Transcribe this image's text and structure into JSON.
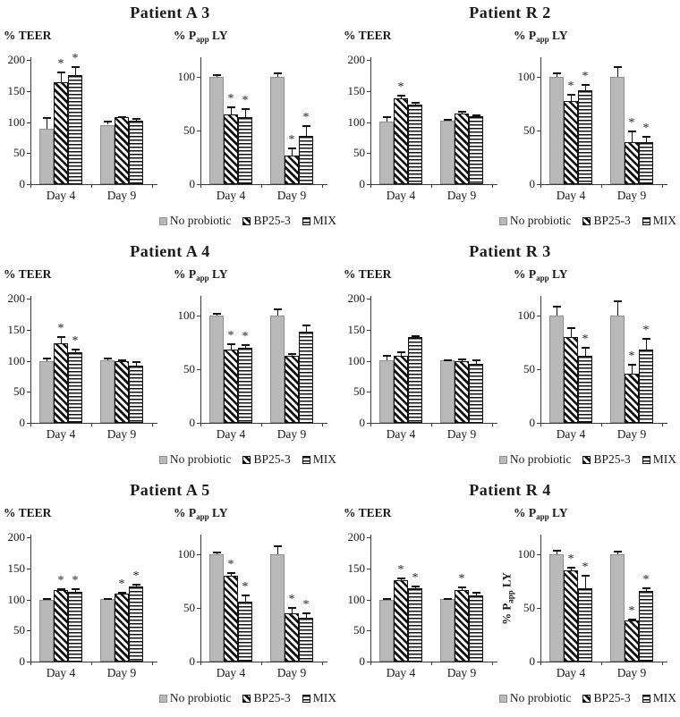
{
  "labels": {
    "teer": {
      "pre": "% TEER",
      "sub": "",
      "post": ""
    },
    "papp": {
      "pre": "% P",
      "sub": "app",
      "post": " LY"
    }
  },
  "legend": {
    "items": [
      {
        "label": "No probiotic",
        "pattern": "solid"
      },
      {
        "label": "BP25-3",
        "pattern": "diag"
      },
      {
        "label": "MIX",
        "pattern": "horiz"
      }
    ]
  },
  "colors": {
    "bar_gray": "#b9b9b9",
    "stripe_black": "#111111",
    "axis": "#3a3a3a",
    "text": "#1a1a1a"
  },
  "panels": [
    {
      "title": "Patient A 3"
    },
    {
      "title": "Patient R 2"
    },
    {
      "title": "Patient A 4"
    },
    {
      "title": "Patient R 3"
    },
    {
      "title": "Patient A 5"
    },
    {
      "title": "Patient R 4"
    }
  ],
  "chart_data": [
    {
      "panel": "Patient A 3",
      "measure": "% TEER",
      "type": "bar",
      "categories": [
        "Day 4",
        "Day 9"
      ],
      "yticks": [
        0,
        50,
        100,
        150,
        200
      ],
      "ylim": [
        0,
        205
      ],
      "ymax": 205,
      "series": [
        {
          "name": "No probiotic",
          "values": [
            89,
            96
          ],
          "errors": [
            19,
            6
          ],
          "sig": [
            false,
            false
          ]
        },
        {
          "name": "BP25-3",
          "values": [
            165,
            108
          ],
          "errors": [
            17,
            2
          ],
          "sig": [
            true,
            false
          ]
        },
        {
          "name": "MIX",
          "values": [
            176,
            103
          ],
          "errors": [
            14,
            4
          ],
          "sig": [
            true,
            false
          ]
        }
      ]
    },
    {
      "panel": "Patient A 3",
      "measure": "% Papp LY",
      "type": "bar",
      "categories": [
        "Day 4",
        "Day 9"
      ],
      "yticks": [
        0,
        50,
        100
      ],
      "ylim": [
        0,
        118
      ],
      "ymax": 118,
      "series": [
        {
          "name": "No probiotic",
          "values": [
            100,
            100
          ],
          "errors": [
            2,
            4
          ],
          "sig": [
            false,
            false
          ]
        },
        {
          "name": "BP25-3",
          "values": [
            65,
            27
          ],
          "errors": [
            7,
            7
          ],
          "sig": [
            true,
            true
          ]
        },
        {
          "name": "MIX",
          "values": [
            62,
            45
          ],
          "errors": [
            9,
            10
          ],
          "sig": [
            true,
            true
          ]
        }
      ]
    },
    {
      "panel": "Patient R 2",
      "measure": "% TEER",
      "type": "bar",
      "categories": [
        "Day 4",
        "Day 9"
      ],
      "yticks": [
        0,
        50,
        100,
        150,
        200
      ],
      "ylim": [
        0,
        205
      ],
      "ymax": 205,
      "series": [
        {
          "name": "No probiotic",
          "values": [
            101,
            102
          ],
          "errors": [
            9,
            3
          ],
          "sig": [
            false,
            false
          ]
        },
        {
          "name": "BP25-3",
          "values": [
            138,
            114
          ],
          "errors": [
            6,
            4
          ],
          "sig": [
            true,
            false
          ]
        },
        {
          "name": "MIX",
          "values": [
            128,
            110
          ],
          "errors": [
            5,
            2
          ],
          "sig": [
            false,
            false
          ]
        }
      ]
    },
    {
      "panel": "Patient R 2",
      "measure": "% Papp LY",
      "type": "bar",
      "categories": [
        "Day 4",
        "Day 9"
      ],
      "yticks": [
        0,
        50,
        100
      ],
      "ylim": [
        0,
        118
      ],
      "ymax": 118,
      "series": [
        {
          "name": "No probiotic",
          "values": [
            100,
            100
          ],
          "errors": [
            4,
            10
          ],
          "sig": [
            false,
            false
          ]
        },
        {
          "name": "BP25-3",
          "values": [
            77,
            39
          ],
          "errors": [
            7,
            11
          ],
          "sig": [
            true,
            true
          ]
        },
        {
          "name": "MIX",
          "values": [
            87,
            39
          ],
          "errors": [
            6,
            6
          ],
          "sig": [
            true,
            true
          ]
        }
      ]
    },
    {
      "panel": "Patient A 4",
      "measure": "% TEER",
      "type": "bar",
      "categories": [
        "Day 4",
        "Day 9"
      ],
      "yticks": [
        0,
        50,
        100,
        150,
        200
      ],
      "ylim": [
        0,
        205
      ],
      "ymax": 205,
      "series": [
        {
          "name": "No probiotic",
          "values": [
            100,
            101
          ],
          "errors": [
            6,
            4
          ],
          "sig": [
            false,
            false
          ]
        },
        {
          "name": "BP25-3",
          "values": [
            129,
            100
          ],
          "errors": [
            11,
            2
          ],
          "sig": [
            true,
            false
          ]
        },
        {
          "name": "MIX",
          "values": [
            114,
            92
          ],
          "errors": [
            6,
            7
          ],
          "sig": [
            true,
            false
          ]
        }
      ]
    },
    {
      "panel": "Patient A 4",
      "measure": "% Papp LY",
      "type": "bar",
      "categories": [
        "Day 4",
        "Day 9"
      ],
      "yticks": [
        0,
        50,
        100
      ],
      "ylim": [
        0,
        118
      ],
      "ymax": 118,
      "series": [
        {
          "name": "No probiotic",
          "values": [
            100,
            100
          ],
          "errors": [
            2,
            6
          ],
          "sig": [
            false,
            false
          ]
        },
        {
          "name": "BP25-3",
          "values": [
            68,
            62
          ],
          "errors": [
            6,
            3
          ],
          "sig": [
            true,
            false
          ]
        },
        {
          "name": "MIX",
          "values": [
            70,
            85
          ],
          "errors": [
            3,
            6
          ],
          "sig": [
            true,
            false
          ]
        }
      ]
    },
    {
      "panel": "Patient R 3",
      "measure": "% TEER",
      "type": "bar",
      "categories": [
        "Day 4",
        "Day 9"
      ],
      "yticks": [
        0,
        50,
        100,
        150,
        200
      ],
      "ylim": [
        0,
        205
      ],
      "ymax": 205,
      "series": [
        {
          "name": "No probiotic",
          "values": [
            101,
            101
          ],
          "errors": [
            8,
            2
          ],
          "sig": [
            false,
            false
          ]
        },
        {
          "name": "BP25-3",
          "values": [
            108,
            99
          ],
          "errors": [
            7,
            5
          ],
          "sig": [
            false,
            false
          ]
        },
        {
          "name": "MIX",
          "values": [
            138,
            95
          ],
          "errors": [
            4,
            7
          ],
          "sig": [
            false,
            false
          ]
        }
      ]
    },
    {
      "panel": "Patient R 3",
      "measure": "% Papp LY",
      "type": "bar",
      "categories": [
        "Day 4",
        "Day 9"
      ],
      "yticks": [
        0,
        50,
        100
      ],
      "ylim": [
        0,
        118
      ],
      "ymax": 118,
      "series": [
        {
          "name": "No probiotic",
          "values": [
            100,
            100
          ],
          "errors": [
            9,
            14
          ],
          "sig": [
            false,
            false
          ]
        },
        {
          "name": "BP25-3",
          "values": [
            80,
            46
          ],
          "errors": [
            9,
            9
          ],
          "sig": [
            false,
            true
          ]
        },
        {
          "name": "MIX",
          "values": [
            62,
            68
          ],
          "errors": [
            9,
            11
          ],
          "sig": [
            true,
            true
          ]
        }
      ]
    },
    {
      "panel": "Patient A 5",
      "measure": "% TEER",
      "type": "bar",
      "categories": [
        "Day 4",
        "Day 9"
      ],
      "yticks": [
        0,
        50,
        100,
        150,
        200
      ],
      "ylim": [
        0,
        205
      ],
      "ymax": 205,
      "series": [
        {
          "name": "No probiotic",
          "values": [
            100,
            101
          ],
          "errors": [
            2,
            1
          ],
          "sig": [
            false,
            false
          ]
        },
        {
          "name": "BP25-3",
          "values": [
            115,
            109
          ],
          "errors": [
            4,
            4
          ],
          "sig": [
            true,
            true
          ]
        },
        {
          "name": "MIX",
          "values": [
            113,
            121
          ],
          "errors": [
            5,
            5
          ],
          "sig": [
            true,
            true
          ]
        }
      ]
    },
    {
      "panel": "Patient A 5",
      "measure": "% Papp LY",
      "type": "bar",
      "categories": [
        "Day 4",
        "Day 9"
      ],
      "yticks": [
        0,
        50,
        100
      ],
      "ylim": [
        0,
        118
      ],
      "ymax": 118,
      "series": [
        {
          "name": "No probiotic",
          "values": [
            100,
            100
          ],
          "errors": [
            2,
            8
          ],
          "sig": [
            false,
            false
          ]
        },
        {
          "name": "BP25-3",
          "values": [
            80,
            45
          ],
          "errors": [
            3,
            6
          ],
          "sig": [
            true,
            true
          ]
        },
        {
          "name": "MIX",
          "values": [
            56,
            41
          ],
          "errors": [
            6,
            5
          ],
          "sig": [
            true,
            true
          ]
        }
      ]
    },
    {
      "panel": "Patient R 4",
      "measure": "% TEER",
      "type": "bar",
      "categories": [
        "Day 4",
        "Day 9"
      ],
      "yticks": [
        0,
        50,
        100,
        150,
        200
      ],
      "ylim": [
        0,
        205
      ],
      "ymax": 205,
      "series": [
        {
          "name": "No probiotic",
          "values": [
            100,
            101
          ],
          "errors": [
            3,
            2
          ],
          "sig": [
            false,
            false
          ]
        },
        {
          "name": "BP25-3",
          "values": [
            132,
            116
          ],
          "errors": [
            4,
            5
          ],
          "sig": [
            true,
            true
          ]
        },
        {
          "name": "MIX",
          "values": [
            118,
            107
          ],
          "errors": [
            4,
            5
          ],
          "sig": [
            true,
            false
          ]
        }
      ]
    },
    {
      "panel": "Patient R 4",
      "measure": "% Papp LY",
      "type": "bar",
      "categories": [
        "Day 4",
        "Day 9"
      ],
      "yticks": [
        0,
        50,
        100
      ],
      "ylim": [
        0,
        118
      ],
      "ymax": 118,
      "rotated_ylabel": true,
      "series": [
        {
          "name": "No probiotic",
          "values": [
            100,
            100
          ],
          "errors": [
            4,
            3
          ],
          "sig": [
            false,
            false
          ]
        },
        {
          "name": "BP25-3",
          "values": [
            85,
            38
          ],
          "errors": [
            3,
            2
          ],
          "sig": [
            true,
            true
          ]
        },
        {
          "name": "MIX",
          "values": [
            68,
            66
          ],
          "errors": [
            13,
            3
          ],
          "sig": [
            true,
            true
          ]
        }
      ]
    }
  ]
}
